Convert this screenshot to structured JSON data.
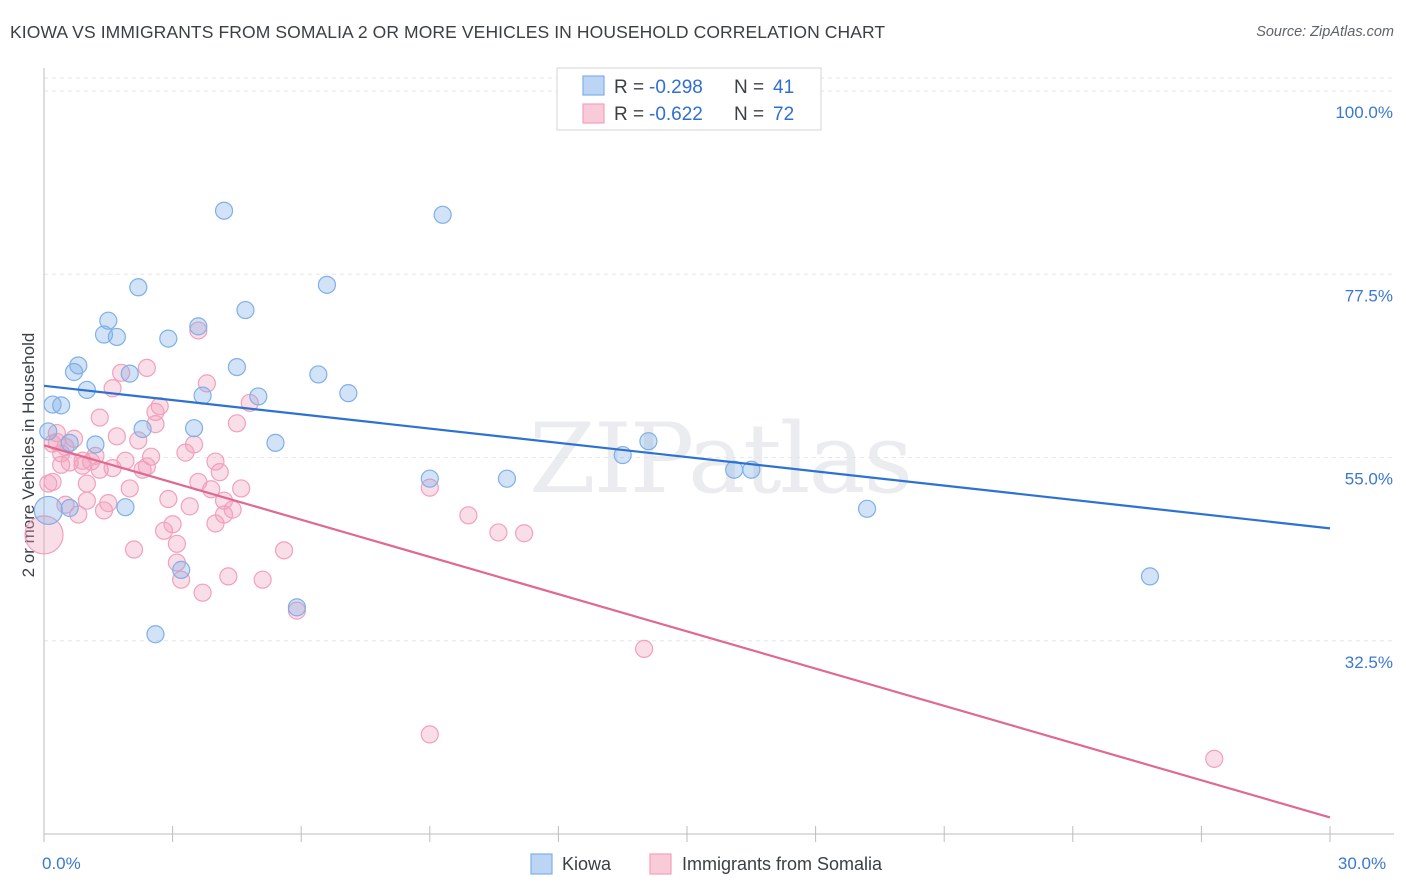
{
  "title": "KIOWA VS IMMIGRANTS FROM SOMALIA 2 OR MORE VEHICLES IN HOUSEHOLD CORRELATION CHART",
  "source": "Source: ZipAtlas.com",
  "watermark": "ZIPatlas",
  "legend": {
    "kiowa": {
      "r_label": "R =",
      "r_value": "-0.298",
      "n_label": "N =",
      "n_value": "41"
    },
    "somalia": {
      "r_label": "R =",
      "r_value": "-0.622",
      "n_label": "N =",
      "n_value": "72"
    }
  },
  "bottom_legend": {
    "kiowa": "Kiowa",
    "somalia": "Immigrants from Somalia"
  },
  "chart_data": {
    "type": "scatter",
    "title": "KIOWA VS IMMIGRANTS FROM SOMALIA 2 OR MORE VEHICLES IN HOUSEHOLD CORRELATION CHART",
    "ylabel": "2 or more Vehicles in Household",
    "xlabel": "",
    "xlim": [
      0,
      30
    ],
    "ylim": [
      10,
      100
    ],
    "y_ticks": [
      {
        "v": 32.5,
        "label": "32.5%"
      },
      {
        "v": 55.0,
        "label": "55.0%"
      },
      {
        "v": 77.5,
        "label": "77.5%"
      },
      {
        "v": 100.0,
        "label": "100.0%"
      }
    ],
    "x_tick_labels": [
      {
        "v": 0,
        "label": "0.0%"
      },
      {
        "v": 30,
        "label": "30.0%"
      }
    ],
    "x_minor_ticks": [
      0,
      3,
      6,
      9,
      12,
      15,
      18,
      21,
      24,
      27,
      30
    ],
    "colors": {
      "kiowa": "#7fb0e8",
      "kiowa_line": "#2d72d2",
      "somalia": "#f2a0bb",
      "somalia_line": "#e0698f"
    },
    "series": [
      {
        "name": "Kiowa",
        "trend": {
          "x0": 0,
          "y0": 63.8,
          "x1": 30,
          "y1": 46.3
        },
        "points": [
          [
            0.1,
            48.5
          ],
          [
            0.1,
            58.2
          ],
          [
            0.2,
            61.5
          ],
          [
            0.4,
            61.4
          ],
          [
            0.6,
            56.8
          ],
          [
            0.7,
            65.5
          ],
          [
            0.8,
            66.3
          ],
          [
            1.0,
            63.3
          ],
          [
            1.2,
            56.6
          ],
          [
            1.4,
            70.1
          ],
          [
            1.5,
            71.8
          ],
          [
            1.7,
            69.8
          ],
          [
            2.0,
            65.3
          ],
          [
            2.2,
            75.9
          ],
          [
            2.3,
            58.5
          ],
          [
            2.6,
            33.3
          ],
          [
            2.9,
            69.6
          ],
          [
            3.2,
            41.2
          ],
          [
            3.6,
            71.1
          ],
          [
            3.7,
            62.6
          ],
          [
            4.2,
            85.3
          ],
          [
            4.5,
            66.1
          ],
          [
            4.7,
            73.1
          ],
          [
            5.0,
            62.5
          ],
          [
            5.4,
            56.8
          ],
          [
            5.9,
            36.6
          ],
          [
            6.4,
            65.2
          ],
          [
            6.6,
            76.2
          ],
          [
            7.1,
            62.9
          ],
          [
            9.0,
            52.4
          ],
          [
            9.3,
            84.8
          ],
          [
            10.8,
            52.4
          ],
          [
            13.5,
            55.3
          ],
          [
            14.1,
            57.0
          ],
          [
            16.1,
            53.5
          ],
          [
            16.5,
            53.5
          ],
          [
            19.2,
            48.7
          ],
          [
            25.8,
            40.4
          ],
          [
            0.6,
            48.8
          ],
          [
            1.9,
            48.9
          ],
          [
            3.5,
            58.6
          ]
        ]
      },
      {
        "name": "Immigrants from Somalia",
        "trend": {
          "x0": 0,
          "y0": 56.5,
          "x1": 30,
          "y1": 10.8
        },
        "points": [
          [
            0.0,
            45.5
          ],
          [
            0.1,
            51.8
          ],
          [
            0.2,
            56.7
          ],
          [
            0.3,
            58.0
          ],
          [
            0.4,
            54.1
          ],
          [
            0.5,
            49.2
          ],
          [
            0.6,
            54.4
          ],
          [
            0.7,
            57.3
          ],
          [
            0.8,
            48.0
          ],
          [
            0.9,
            54.0
          ],
          [
            1.0,
            51.8
          ],
          [
            1.1,
            54.5
          ],
          [
            1.2,
            55.2
          ],
          [
            1.3,
            53.5
          ],
          [
            1.4,
            48.5
          ],
          [
            1.5,
            49.4
          ],
          [
            1.6,
            53.7
          ],
          [
            1.7,
            57.6
          ],
          [
            1.8,
            65.4
          ],
          [
            1.9,
            54.6
          ],
          [
            2.0,
            51.2
          ],
          [
            2.1,
            43.7
          ],
          [
            2.2,
            57.1
          ],
          [
            2.3,
            53.5
          ],
          [
            2.4,
            66.0
          ],
          [
            2.5,
            55.1
          ],
          [
            2.6,
            59.1
          ],
          [
            2.7,
            61.3
          ],
          [
            2.8,
            46.0
          ],
          [
            2.9,
            49.9
          ],
          [
            3.0,
            46.8
          ],
          [
            3.1,
            42.1
          ],
          [
            3.2,
            40.0
          ],
          [
            3.3,
            55.6
          ],
          [
            3.4,
            49.0
          ],
          [
            3.5,
            56.6
          ],
          [
            3.6,
            52.0
          ],
          [
            3.7,
            38.4
          ],
          [
            3.8,
            64.1
          ],
          [
            3.9,
            51.1
          ],
          [
            4.0,
            46.9
          ],
          [
            4.1,
            53.2
          ],
          [
            4.2,
            49.7
          ],
          [
            4.3,
            40.4
          ],
          [
            4.5,
            59.2
          ],
          [
            4.6,
            51.2
          ],
          [
            4.8,
            61.7
          ],
          [
            5.1,
            40.0
          ],
          [
            5.6,
            43.6
          ],
          [
            5.9,
            36.2
          ],
          [
            4.4,
            48.6
          ],
          [
            4.0,
            54.5
          ],
          [
            3.6,
            70.6
          ],
          [
            2.6,
            60.6
          ],
          [
            1.6,
            63.5
          ],
          [
            1.3,
            59.9
          ],
          [
            0.9,
            54.6
          ],
          [
            0.5,
            56.3
          ],
          [
            0.3,
            56.9
          ],
          [
            9.0,
            51.3
          ],
          [
            9.0,
            21.0
          ],
          [
            9.9,
            47.9
          ],
          [
            10.6,
            45.8
          ],
          [
            11.2,
            45.7
          ],
          [
            14.0,
            31.5
          ],
          [
            27.3,
            18.0
          ],
          [
            0.4,
            55.5
          ],
          [
            0.2,
            52.0
          ],
          [
            2.4,
            53.9
          ],
          [
            3.1,
            44.4
          ],
          [
            1.0,
            49.7
          ],
          [
            4.2,
            48.0
          ]
        ]
      }
    ]
  }
}
